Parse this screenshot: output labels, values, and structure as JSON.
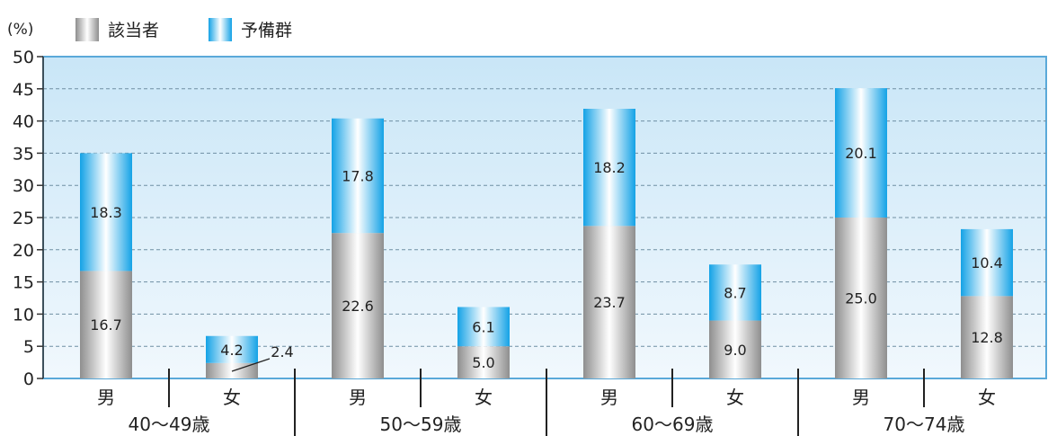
{
  "chart_data": {
    "type": "bar",
    "stacked": true,
    "unit_label": "(%)",
    "ylim": [
      0,
      50
    ],
    "yticks": [
      0,
      5,
      10,
      15,
      20,
      25,
      30,
      35,
      40,
      45,
      50
    ],
    "grid": true,
    "legend_position": "top-left",
    "groups": [
      "40〜49歳",
      "50〜59歳",
      "60〜69歳",
      "70〜74歳"
    ],
    "categories": [
      "男",
      "女",
      "男",
      "女",
      "男",
      "女",
      "男",
      "女"
    ],
    "series": [
      {
        "name": "該当者",
        "values": [
          16.7,
          2.4,
          22.6,
          5.0,
          23.7,
          9.0,
          25.0,
          12.8
        ]
      },
      {
        "name": "予備群",
        "values": [
          18.3,
          4.2,
          17.8,
          6.1,
          18.2,
          8.7,
          20.1,
          10.4
        ]
      }
    ],
    "colors": {
      "plot_background": "#ddeefa",
      "plot_border": "#5aa9d9",
      "series_gray": "#9a9a9a",
      "series_blue": "#1aa7e8"
    }
  }
}
